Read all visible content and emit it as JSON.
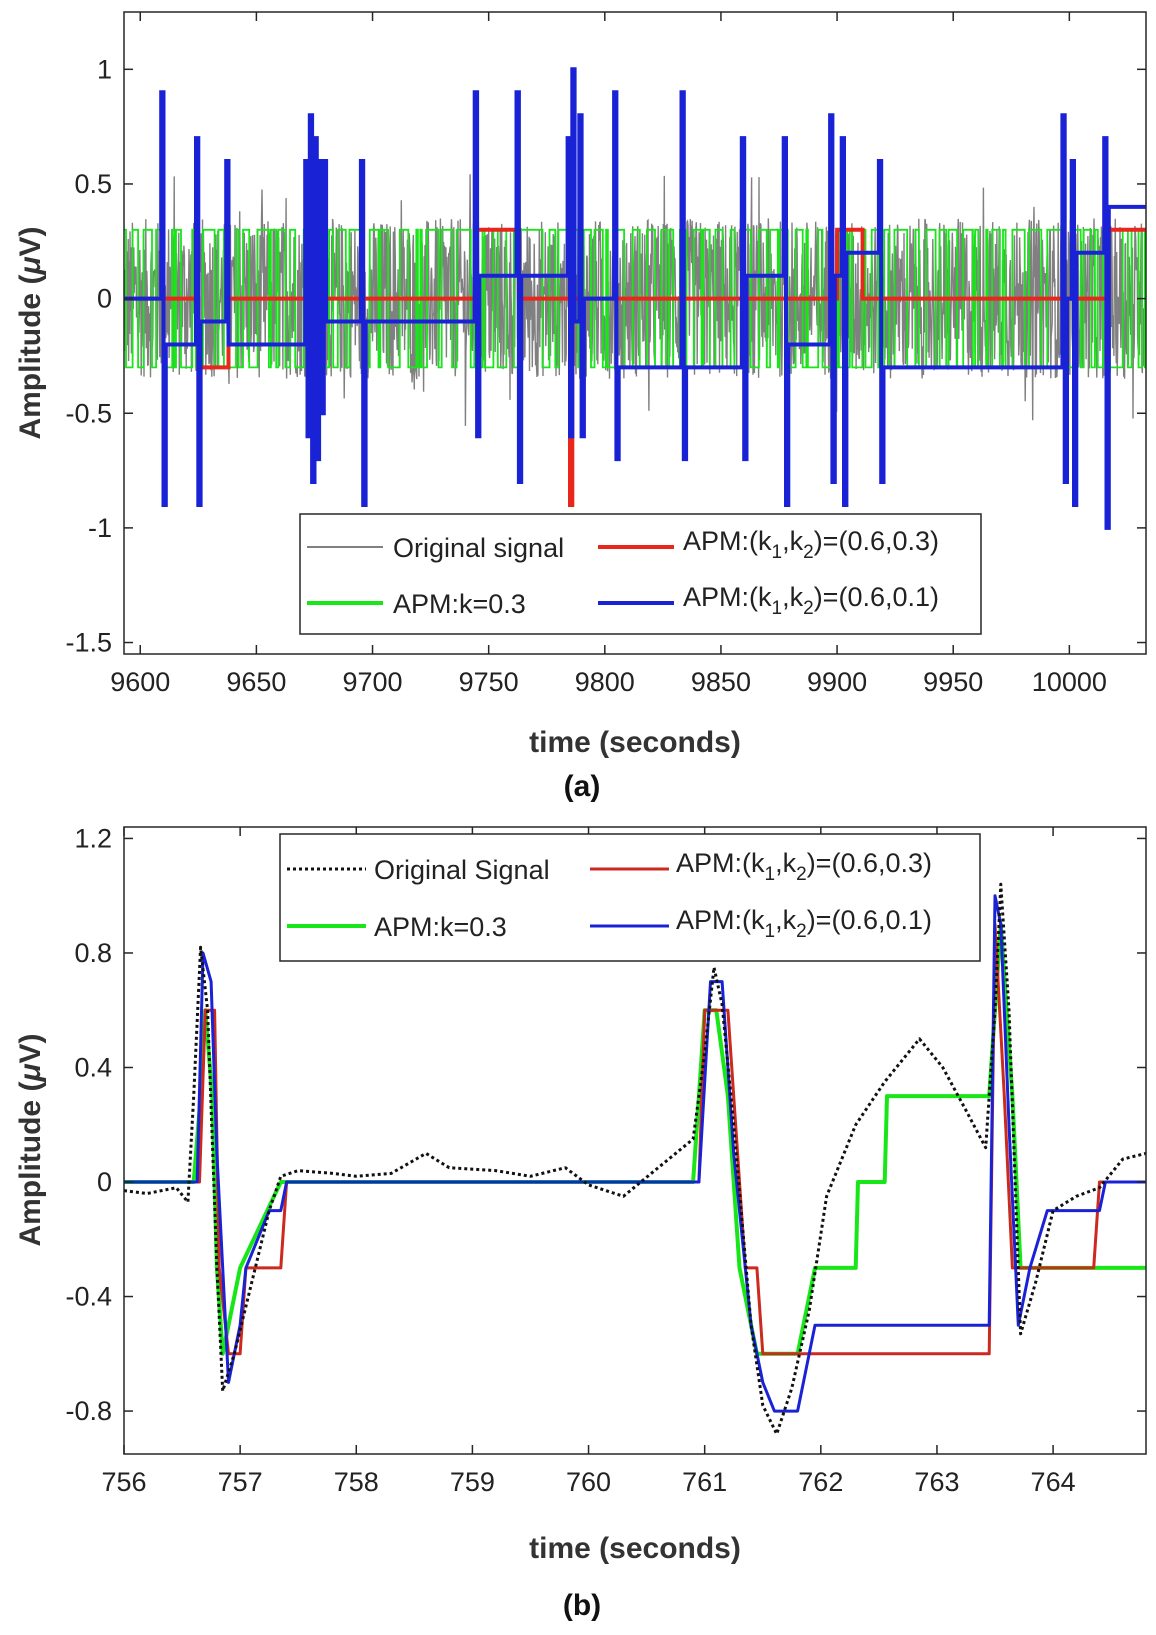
{
  "chart_data": [
    {
      "id": "a",
      "type": "line",
      "caption": "(a)",
      "xlabel": "time (seconds)",
      "ylabel_prefix": "Amplitude (",
      "ylabel_mu": "μ",
      "ylabel_suffix": "V)",
      "xlim": [
        9593,
        10033
      ],
      "ylim": [
        -1.55,
        1.25
      ],
      "xticks": [
        9600,
        9650,
        9700,
        9750,
        9800,
        9850,
        9900,
        9950,
        10000
      ],
      "xtick_labels": [
        "9600",
        "9650",
        "9700",
        "9750",
        "9800",
        "9850",
        "9900",
        "9950",
        "10000"
      ],
      "yticks": [
        1,
        0.5,
        0,
        -0.5,
        -1,
        -1.5
      ],
      "ytick_labels": [
        "1",
        "0.5",
        "0",
        "-0.5",
        "-1",
        "-1.5"
      ],
      "legend": [
        {
          "key": "orig",
          "label": "Original signal",
          "color": "#808080"
        },
        {
          "key": "red",
          "label_main": "APM:(k",
          "sub1": "1",
          "mid": ",k",
          "sub2": "2",
          "label_tail": ")=(0.6,0.3)",
          "color": "#e8261c"
        },
        {
          "key": "green",
          "label": "APM:k=0.3",
          "color": "#19e619"
        },
        {
          "key": "blue",
          "label_main": "APM:(k",
          "sub1": "1",
          "mid": ",k",
          "sub2": "2",
          "label_tail": ")=(0.6,0.1)",
          "color": "#1a22d6"
        }
      ],
      "series": [
        {
          "name": "APM:(k1,k2)=(0.6,0.3)",
          "color": "#e8261c",
          "steps": [
            [
              9593,
              0
            ],
            [
              9625,
              -0.3
            ],
            [
              9638,
              0
            ],
            [
              9745,
              0.3
            ],
            [
              9763,
              0
            ],
            [
              9785,
              -0.9
            ],
            [
              9786,
              0
            ],
            [
              9900,
              0.3
            ],
            [
              9911,
              0
            ],
            [
              10017,
              0.3
            ],
            [
              10033,
              0.3
            ]
          ]
        },
        {
          "name": "APM:(k1,k2)=(0.6,0.1)",
          "color": "#1a22d6",
          "steps": [
            [
              9593,
              0
            ],
            [
              9609,
              0.9
            ],
            [
              9610,
              -0.9
            ],
            [
              9611,
              -0.2
            ],
            [
              9624,
              0.7
            ],
            [
              9625,
              -0.9
            ],
            [
              9626,
              -0.1
            ],
            [
              9637,
              0.6
            ],
            [
              9638,
              -0.2
            ],
            [
              9671,
              0.6
            ],
            [
              9672,
              -0.6
            ],
            [
              9673,
              0.8
            ],
            [
              9674,
              -0.8
            ],
            [
              9675,
              0.7
            ],
            [
              9676,
              -0.7
            ],
            [
              9677,
              0.6
            ],
            [
              9678,
              -0.5
            ],
            [
              9679,
              0.6
            ],
            [
              9680,
              -0.1
            ],
            [
              9695,
              0.6
            ],
            [
              9696,
              -0.9
            ],
            [
              9697,
              -0.1
            ],
            [
              9744,
              0.9
            ],
            [
              9745,
              -0.6
            ],
            [
              9746,
              0.1
            ],
            [
              9762,
              0.9
            ],
            [
              9763,
              -0.8
            ],
            [
              9764,
              0.1
            ],
            [
              9784,
              0.7
            ],
            [
              9785,
              -0.6
            ],
            [
              9786,
              1.0
            ],
            [
              9787,
              -0.1
            ],
            [
              9789,
              0.8
            ],
            [
              9790,
              -0.6
            ],
            [
              9791,
              0
            ],
            [
              9804,
              0.9
            ],
            [
              9805,
              -0.7
            ],
            [
              9806,
              -0.3
            ],
            [
              9833,
              0.9
            ],
            [
              9834,
              -0.7
            ],
            [
              9835,
              -0.3
            ],
            [
              9859,
              0.7
            ],
            [
              9860,
              -0.7
            ],
            [
              9861,
              0.1
            ],
            [
              9877,
              0.7
            ],
            [
              9878,
              -0.9
            ],
            [
              9879,
              -0.2
            ],
            [
              9897,
              0.8
            ],
            [
              9898,
              -0.8
            ],
            [
              9899,
              0.1
            ],
            [
              9902,
              0.7
            ],
            [
              9903,
              -0.9
            ],
            [
              9904,
              0.2
            ],
            [
              9918,
              0.6
            ],
            [
              9919,
              -0.8
            ],
            [
              9920,
              -0.3
            ],
            [
              9997,
              0.8
            ],
            [
              9998,
              -0.8
            ],
            [
              9999,
              0
            ],
            [
              10001,
              0.6
            ],
            [
              10002,
              -0.9
            ],
            [
              10003,
              0.2
            ],
            [
              10015,
              0.7
            ],
            [
              10016,
              -1.0
            ],
            [
              10017,
              0.4
            ],
            [
              10033,
              0.4
            ]
          ]
        },
        {
          "name": "APM:k=0.3",
          "color": "#19e619",
          "levels": [
            0.3,
            -0.3
          ],
          "range": [
            9593,
            10033
          ]
        },
        {
          "name": "Original signal",
          "color": "#808080",
          "amplitude": 0.35,
          "range": [
            9593,
            10033
          ]
        }
      ]
    },
    {
      "id": "b",
      "type": "line",
      "caption": "(b)",
      "xlabel": "time (seconds)",
      "ylabel_prefix": "Amplitude (",
      "ylabel_mu": "μ",
      "ylabel_suffix": "V)",
      "xlim": [
        756,
        764.8
      ],
      "ylim": [
        -0.95,
        1.24
      ],
      "xticks": [
        756,
        757,
        758,
        759,
        760,
        761,
        762,
        763,
        764
      ],
      "xtick_labels": [
        "756",
        "757",
        "758",
        "759",
        "760",
        "761",
        "762",
        "763",
        "764"
      ],
      "yticks": [
        1.2,
        0.8,
        0.4,
        0,
        -0.4,
        -0.8
      ],
      "ytick_labels": [
        "1.2",
        "0.8",
        "0.4",
        "0",
        "-0.4",
        "-0.8"
      ],
      "legend": [
        {
          "key": "orig",
          "label": "Original Signal",
          "color": "#111111"
        },
        {
          "key": "red",
          "label_main": "APM:(k",
          "sub1": "1",
          "mid": ",k",
          "sub2": "2",
          "label_tail": ")=(0.6,0.3)",
          "color": "#cc2a1e"
        },
        {
          "key": "green",
          "label": "APM:k=0.3",
          "color": "#19e619"
        },
        {
          "key": "blue",
          "label_main": "APM:(k",
          "sub1": "1",
          "mid": ",k",
          "sub2": "2",
          "label_tail": ")=(0.6,0.1)",
          "color": "#1a22d6"
        }
      ],
      "series": [
        {
          "name": "APM:k=0.3",
          "color": "#19e619",
          "points": [
            [
              756,
              0
            ],
            [
              756.6,
              0
            ],
            [
              756.66,
              0.3
            ],
            [
              756.7,
              0.6
            ],
            [
              756.76,
              0.3
            ],
            [
              756.8,
              -0.3
            ],
            [
              756.85,
              -0.6
            ],
            [
              757.0,
              -0.3
            ],
            [
              757.35,
              0
            ],
            [
              760.9,
              0
            ],
            [
              760.95,
              0.3
            ],
            [
              761.0,
              0.6
            ],
            [
              761.1,
              0.6
            ],
            [
              761.2,
              0.3
            ],
            [
              761.3,
              -0.3
            ],
            [
              761.45,
              -0.6
            ],
            [
              761.8,
              -0.6
            ],
            [
              761.95,
              -0.3
            ],
            [
              762.3,
              -0.3
            ],
            [
              762.32,
              0
            ],
            [
              762.55,
              0
            ],
            [
              762.57,
              0.3
            ],
            [
              763.45,
              0.3
            ],
            [
              763.5,
              0.6
            ],
            [
              763.55,
              0.9
            ],
            [
              763.65,
              0.3
            ],
            [
              763.72,
              -0.3
            ],
            [
              764.8,
              -0.3
            ]
          ]
        },
        {
          "name": "APM:(k1,k2)=(0.6,0.3)",
          "color": "#cc2a1e",
          "points": [
            [
              756,
              0
            ],
            [
              756.65,
              0
            ],
            [
              756.7,
              0.6
            ],
            [
              756.78,
              0.6
            ],
            [
              756.82,
              -0.3
            ],
            [
              756.9,
              -0.6
            ],
            [
              757.0,
              -0.6
            ],
            [
              757.05,
              -0.3
            ],
            [
              757.35,
              -0.3
            ],
            [
              757.4,
              0
            ],
            [
              760.95,
              0
            ],
            [
              761.0,
              0.6
            ],
            [
              761.2,
              0.6
            ],
            [
              761.25,
              0.3
            ],
            [
              761.35,
              -0.3
            ],
            [
              761.45,
              -0.3
            ],
            [
              761.5,
              -0.6
            ],
            [
              763.45,
              -0.6
            ],
            [
              763.5,
              0.9
            ],
            [
              763.58,
              0.3
            ],
            [
              763.65,
              -0.3
            ],
            [
              764.35,
              -0.3
            ],
            [
              764.4,
              0
            ],
            [
              764.8,
              0
            ]
          ]
        },
        {
          "name": "APM:(k1,k2)=(0.6,0.1)",
          "color": "#1a22d6",
          "points": [
            [
              756,
              0
            ],
            [
              756.63,
              0
            ],
            [
              756.68,
              0.8
            ],
            [
              756.75,
              0.7
            ],
            [
              756.8,
              0.1
            ],
            [
              756.9,
              -0.7
            ],
            [
              757.0,
              -0.5
            ],
            [
              757.05,
              -0.3
            ],
            [
              757.15,
              -0.2
            ],
            [
              757.25,
              -0.1
            ],
            [
              757.35,
              -0.1
            ],
            [
              757.4,
              0
            ],
            [
              760.95,
              0
            ],
            [
              761.05,
              0.7
            ],
            [
              761.15,
              0.7
            ],
            [
              761.25,
              0.1
            ],
            [
              761.4,
              -0.5
            ],
            [
              761.5,
              -0.7
            ],
            [
              761.6,
              -0.8
            ],
            [
              761.8,
              -0.8
            ],
            [
              761.95,
              -0.5
            ],
            [
              763.45,
              -0.5
            ],
            [
              763.5,
              1.0
            ],
            [
              763.55,
              0.9
            ],
            [
              763.62,
              0.2
            ],
            [
              763.7,
              -0.5
            ],
            [
              763.8,
              -0.3
            ],
            [
              763.95,
              -0.1
            ],
            [
              764.4,
              -0.1
            ],
            [
              764.45,
              0
            ],
            [
              764.8,
              0
            ]
          ]
        },
        {
          "name": "Original Signal",
          "color": "#111111",
          "dashed": true,
          "points": [
            [
              756,
              -0.03
            ],
            [
              756.2,
              -0.04
            ],
            [
              756.45,
              -0.02
            ],
            [
              756.55,
              -0.07
            ],
            [
              756.6,
              0.3
            ],
            [
              756.66,
              0.82
            ],
            [
              756.72,
              0.6
            ],
            [
              756.8,
              -0.3
            ],
            [
              756.85,
              -0.73
            ],
            [
              756.95,
              -0.6
            ],
            [
              757.1,
              -0.35
            ],
            [
              757.25,
              -0.1
            ],
            [
              757.35,
              0.02
            ],
            [
              757.5,
              0.04
            ],
            [
              757.8,
              0.03
            ],
            [
              758.0,
              0.02
            ],
            [
              758.3,
              0.03
            ],
            [
              758.6,
              0.1
            ],
            [
              758.8,
              0.05
            ],
            [
              759.2,
              0.04
            ],
            [
              759.5,
              0.02
            ],
            [
              759.8,
              0.05
            ],
            [
              760.0,
              -0.01
            ],
            [
              760.3,
              -0.05
            ],
            [
              760.6,
              0.05
            ],
            [
              760.9,
              0.15
            ],
            [
              761.0,
              0.45
            ],
            [
              761.08,
              0.75
            ],
            [
              761.15,
              0.62
            ],
            [
              761.25,
              0.2
            ],
            [
              761.4,
              -0.5
            ],
            [
              761.5,
              -0.78
            ],
            [
              761.62,
              -0.88
            ],
            [
              761.75,
              -0.72
            ],
            [
              761.9,
              -0.45
            ],
            [
              762.05,
              -0.05
            ],
            [
              762.3,
              0.2
            ],
            [
              762.55,
              0.35
            ],
            [
              762.85,
              0.5
            ],
            [
              763.05,
              0.4
            ],
            [
              763.25,
              0.25
            ],
            [
              763.42,
              0.12
            ],
            [
              763.5,
              0.6
            ],
            [
              763.55,
              1.04
            ],
            [
              763.62,
              0.6
            ],
            [
              763.72,
              -0.53
            ],
            [
              763.85,
              -0.35
            ],
            [
              764.0,
              -0.1
            ],
            [
              764.2,
              -0.05
            ],
            [
              764.4,
              -0.02
            ],
            [
              764.6,
              0.08
            ],
            [
              764.8,
              0.1
            ]
          ]
        }
      ]
    }
  ]
}
